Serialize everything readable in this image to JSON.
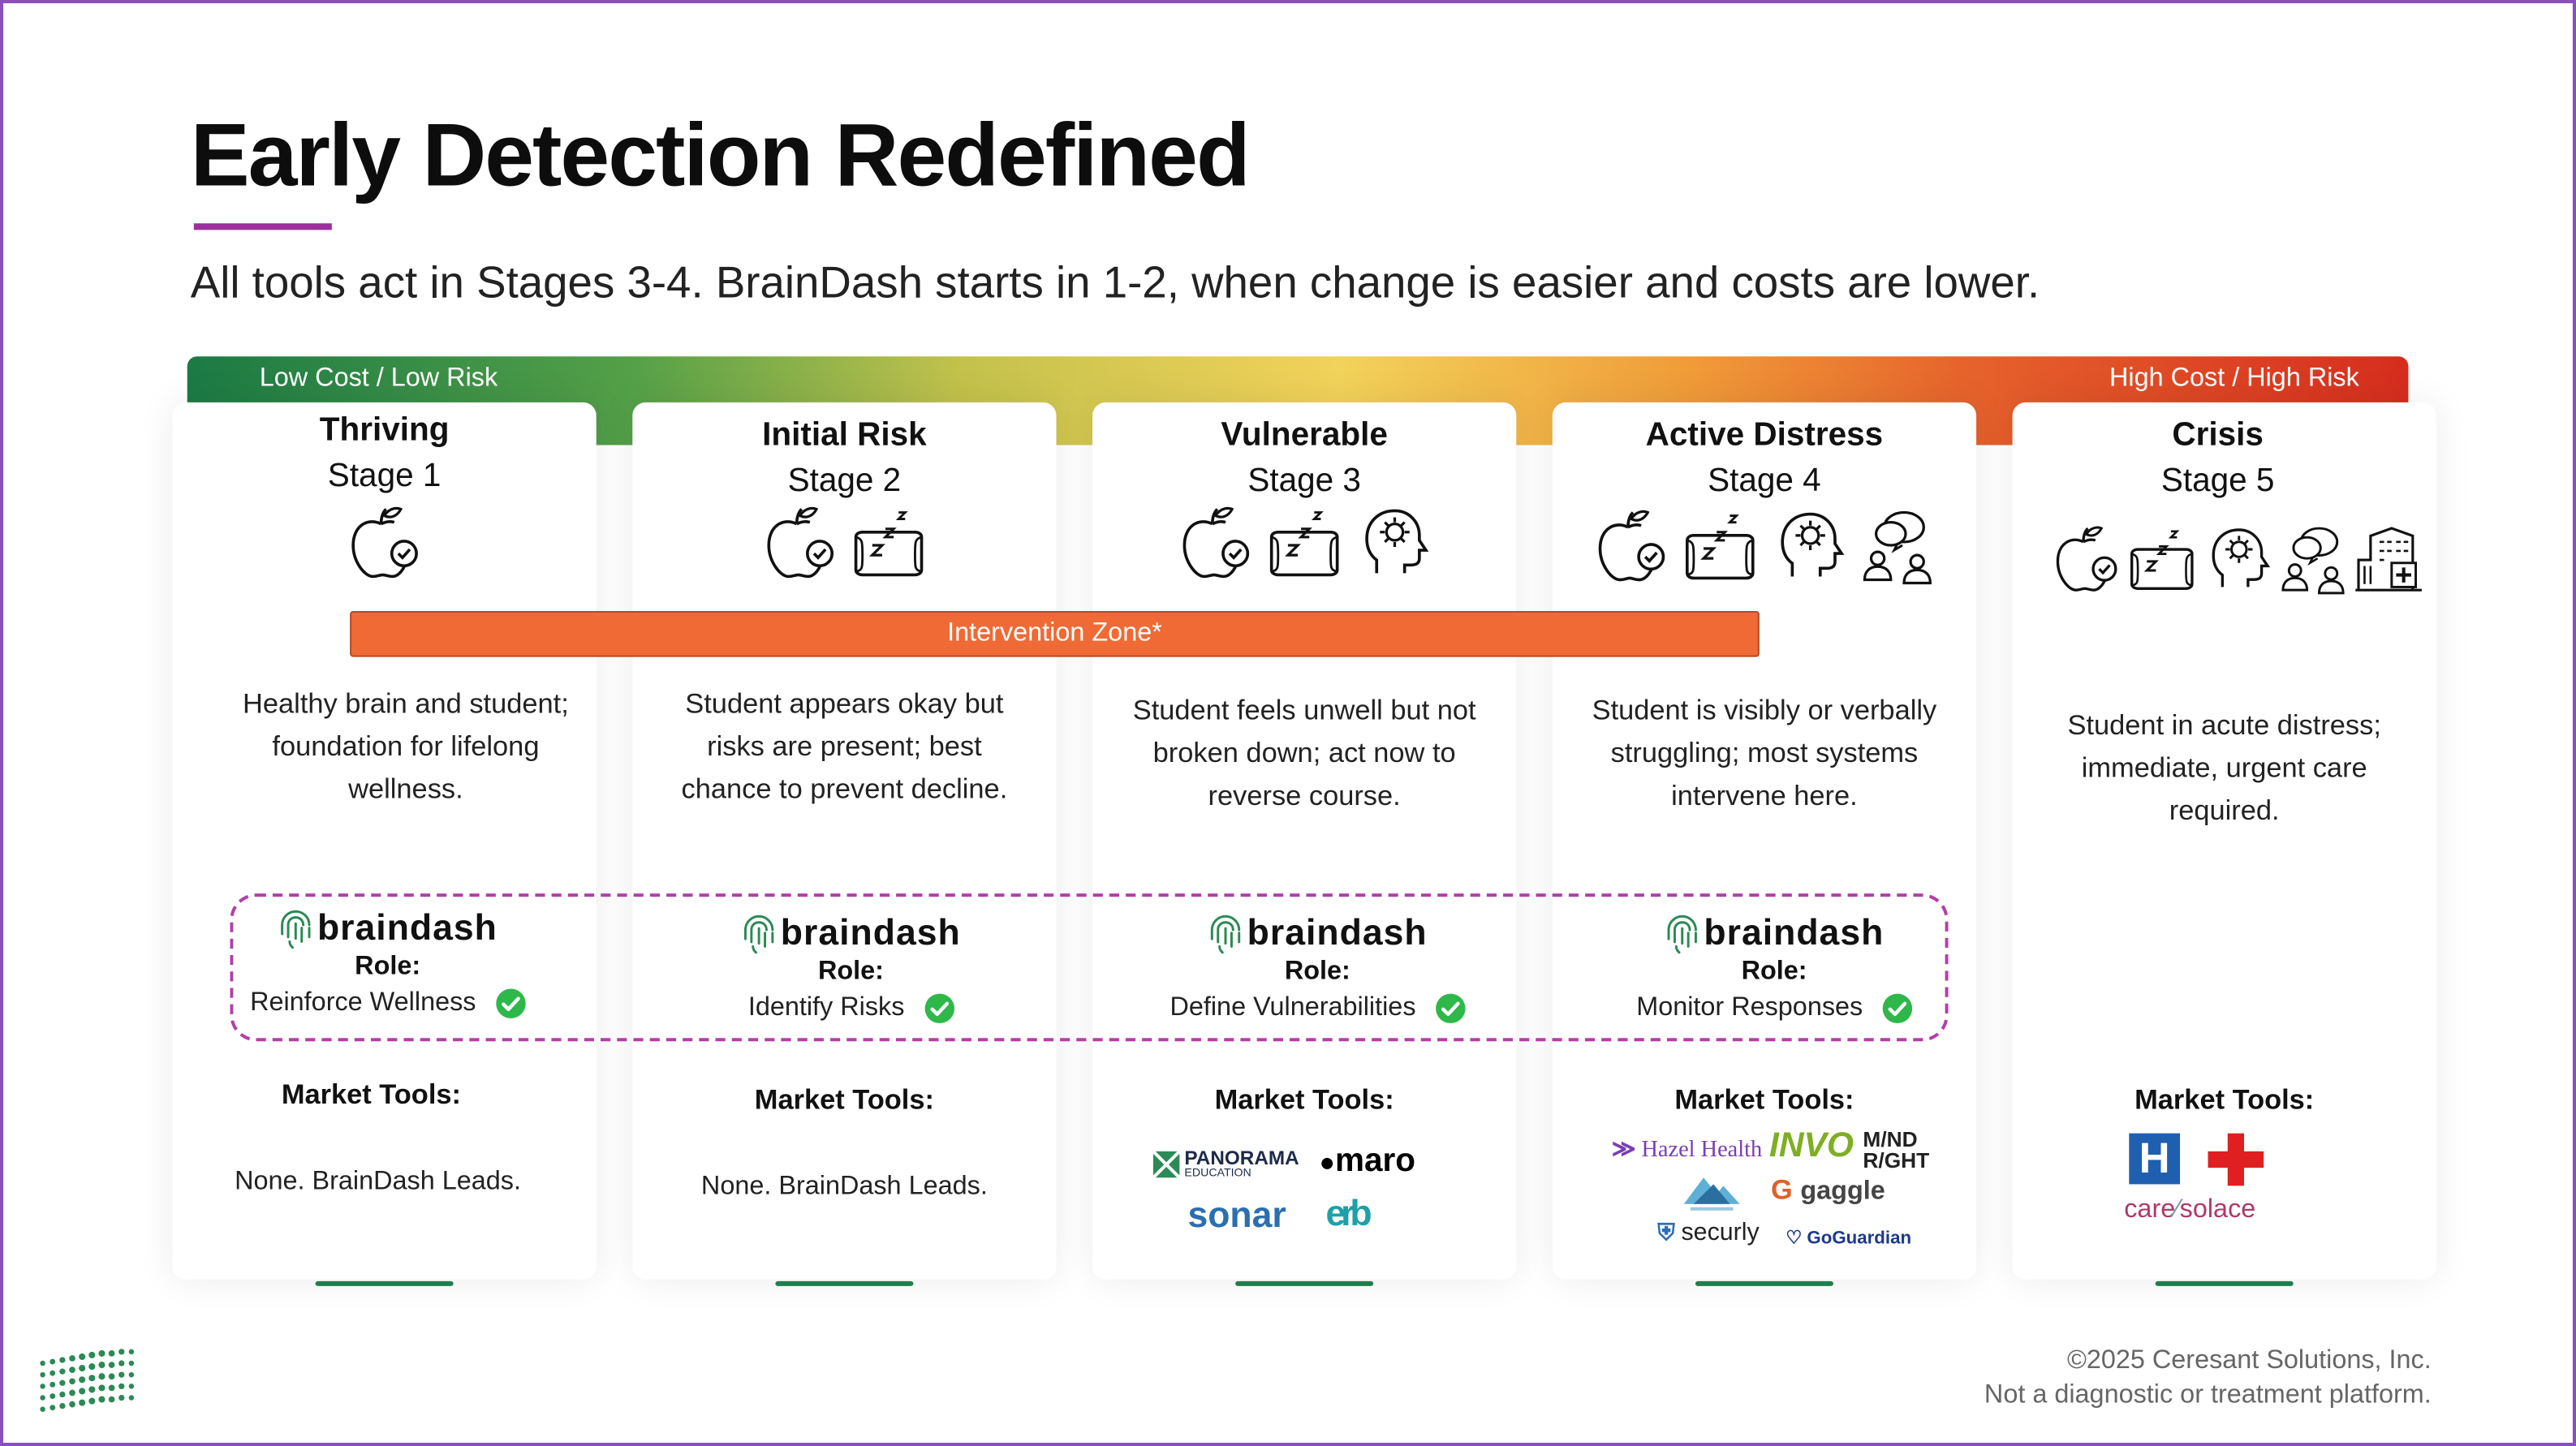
{
  "header": {
    "title": "Early Detection Redefined",
    "subtitle": "All tools act in Stages 3-4. BrainDash starts in 1-2, when change is easier and costs are lower."
  },
  "risk_bar": {
    "low_label": "Low Cost / Low Risk",
    "high_label": "High Cost / High Risk",
    "colors": [
      "#1b7a44",
      "#f2d25a",
      "#d62d1e"
    ]
  },
  "intervention_zone": {
    "label": "Intervention Zone*",
    "color": "#ef6a35"
  },
  "stages": [
    {
      "title": "Thriving",
      "stage": "Stage 1",
      "icons": [
        "apple-check-icon"
      ],
      "description": "Healthy brain and student; foundation for lifelong wellness.",
      "braindash": {
        "word": "braindash",
        "role_label": "Role:",
        "role": "Reinforce Wellness"
      },
      "market_tools_label": "Market Tools:",
      "market_tools": "None. BrainDash Leads."
    },
    {
      "title": "Initial Risk",
      "stage": "Stage 2",
      "icons": [
        "apple-check-icon",
        "sleep-pillow-icon"
      ],
      "description": "Student appears okay but risks are present; best chance to prevent decline.",
      "braindash": {
        "word": "braindash",
        "role_label": "Role:",
        "role": "Identify Risks"
      },
      "market_tools_label": "Market Tools:",
      "market_tools": "None. BrainDash Leads."
    },
    {
      "title": "Vulnerable",
      "stage": "Stage 3",
      "icons": [
        "apple-check-icon",
        "sleep-pillow-icon",
        "head-gear-icon"
      ],
      "description": "Student feels unwell but not broken down; act now to reverse course.",
      "braindash": {
        "word": "braindash",
        "role_label": "Role:",
        "role": "Define Vulnerabilities"
      },
      "market_tools_label": "Market Tools:",
      "logos": [
        "PANORAMA",
        "EDUCATION",
        "maro",
        "sonar",
        "erb"
      ]
    },
    {
      "title": "Active Distress",
      "stage": "Stage 4",
      "icons": [
        "apple-check-icon",
        "sleep-pillow-icon",
        "head-gear-icon",
        "people-talk-icon"
      ],
      "description": "Student is visibly or verbally struggling; most systems intervene here.",
      "braindash": {
        "word": "braindash",
        "role_label": "Role:",
        "role": "Monitor Responses"
      },
      "market_tools_label": "Market Tools:",
      "logos": [
        "Hazel Health",
        "INVO",
        "M/ND",
        "R/GHT",
        "gaggle",
        "securly",
        "GoGuardian"
      ]
    },
    {
      "title": "Crisis",
      "stage": "Stage 5",
      "icons": [
        "apple-check-icon",
        "sleep-pillow-icon",
        "head-gear-icon",
        "people-talk-icon",
        "hospital-icon"
      ],
      "description": "Student in acute distress; immediate, urgent care required.",
      "market_tools_label": "Market Tools:",
      "logos": [
        "H",
        "care",
        "solace"
      ]
    }
  ],
  "footer": {
    "copyright": "©2025 Ceresant Solutions, Inc.",
    "disclaimer": "Not a diagnostic or treatment platform."
  }
}
